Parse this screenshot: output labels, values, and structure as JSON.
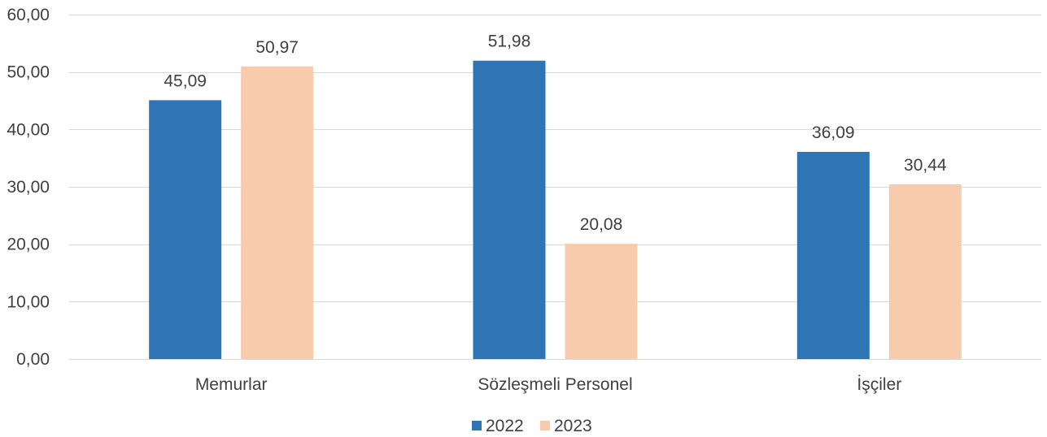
{
  "chart_data": {
    "type": "bar",
    "categories": [
      "Memurlar",
      "Sözleşmeli Personel",
      "İşçiler"
    ],
    "series": [
      {
        "name": "2022",
        "values": [
          45.09,
          51.98,
          36.09
        ],
        "labels": [
          "45,09",
          "51,98",
          "36,09"
        ],
        "color": "#2E75B6"
      },
      {
        "name": "2023",
        "values": [
          50.97,
          20.08,
          30.44
        ],
        "labels": [
          "50,97",
          "20,08",
          "30,44"
        ],
        "color": "#F8CBAD"
      }
    ],
    "ylim": [
      0,
      60
    ],
    "yticks": [
      0,
      10,
      20,
      30,
      40,
      50,
      60
    ],
    "ytick_labels": [
      "0,00",
      "10,00",
      "20,00",
      "30,00",
      "40,00",
      "50,00",
      "60,00"
    ],
    "grid": true,
    "legend": "bottom",
    "colors": {
      "text": "#404040",
      "grid": "#D9D9D9"
    }
  }
}
